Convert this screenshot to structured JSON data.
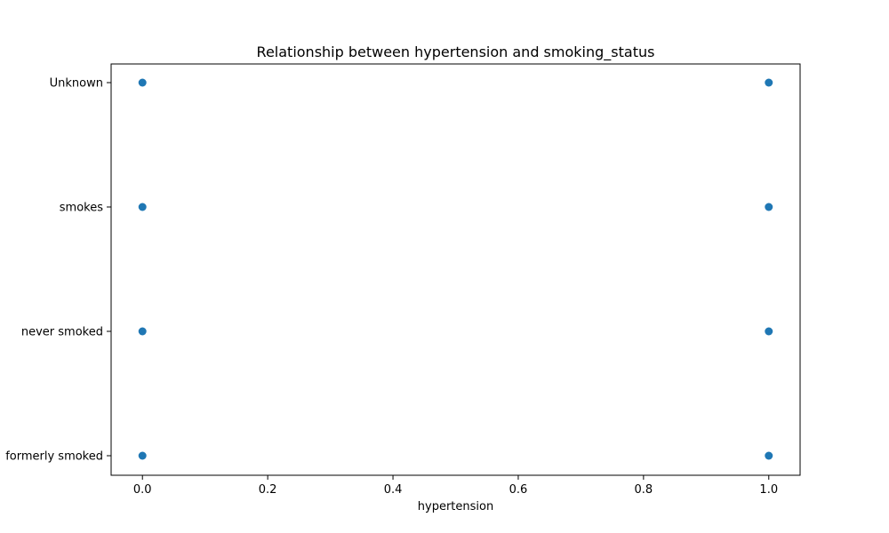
{
  "chart_data": {
    "type": "scatter",
    "title": "Relationship between hypertension and smoking_status",
    "xlabel": "hypertension",
    "ylabel": "",
    "x_ticks": [
      "0.0",
      "0.2",
      "0.4",
      "0.6",
      "0.8",
      "1.0"
    ],
    "x_tick_values": [
      0,
      0.2,
      0.4,
      0.6,
      0.8,
      1.0
    ],
    "xlim": [
      -0.05,
      1.05
    ],
    "y_categories": [
      "formerly smoked",
      "never smoked",
      "smokes",
      "Unknown"
    ],
    "points": [
      {
        "x": 0,
        "y": "Unknown"
      },
      {
        "x": 1,
        "y": "Unknown"
      },
      {
        "x": 0,
        "y": "smokes"
      },
      {
        "x": 1,
        "y": "smokes"
      },
      {
        "x": 0,
        "y": "never smoked"
      },
      {
        "x": 1,
        "y": "never smoked"
      },
      {
        "x": 0,
        "y": "formerly smoked"
      },
      {
        "x": 1,
        "y": "formerly smoked"
      }
    ],
    "marker_color": "#1f77b4",
    "grid": false,
    "legend": "none"
  }
}
